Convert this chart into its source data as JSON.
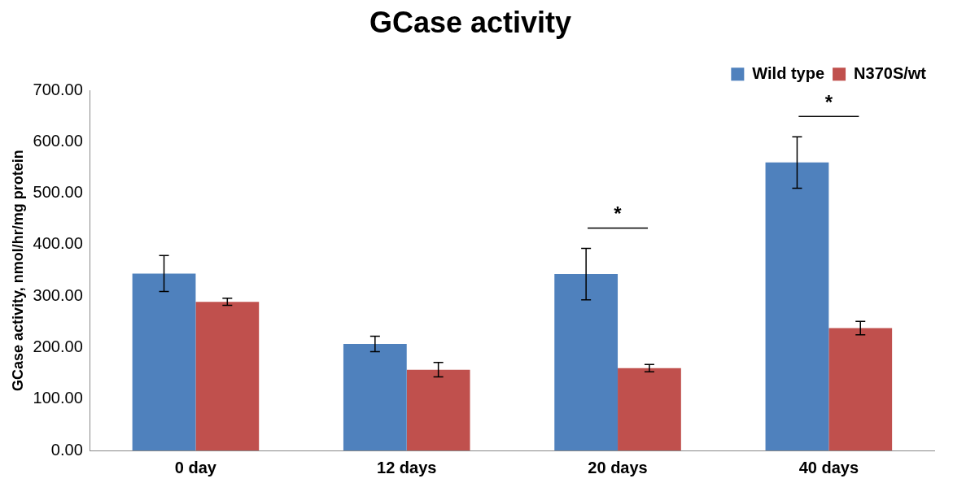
{
  "chart_data": {
    "type": "bar",
    "title": "GCase activity",
    "ylabel": "GCase activity, nmol/hr/mg protein",
    "categories": [
      "0 day",
      "12 days",
      "20 days",
      "40 days"
    ],
    "series": [
      {
        "name": "Wild type",
        "color": "#4f81bd",
        "values": [
          344,
          207,
          343,
          560
        ],
        "errors": [
          35,
          15,
          50,
          50
        ]
      },
      {
        "name": "N370S/wt",
        "color": "#c0504d",
        "values": [
          289,
          157,
          160,
          238
        ],
        "errors": [
          7,
          14,
          7,
          13
        ]
      }
    ],
    "ylim": [
      0,
      700
    ],
    "yticks": [
      {
        "value": 0,
        "label": "0.00"
      },
      {
        "value": 100,
        "label": "100.00"
      },
      {
        "value": 200,
        "label": "200.00"
      },
      {
        "value": 300,
        "label": "300.00"
      },
      {
        "value": 400,
        "label": "400.00"
      },
      {
        "value": 500,
        "label": "500.00"
      },
      {
        "value": 600,
        "label": "600.00"
      },
      {
        "value": 700,
        "label": "700.00"
      }
    ],
    "annotations": [
      "*",
      "*"
    ],
    "grid": false,
    "legend": "top right"
  }
}
